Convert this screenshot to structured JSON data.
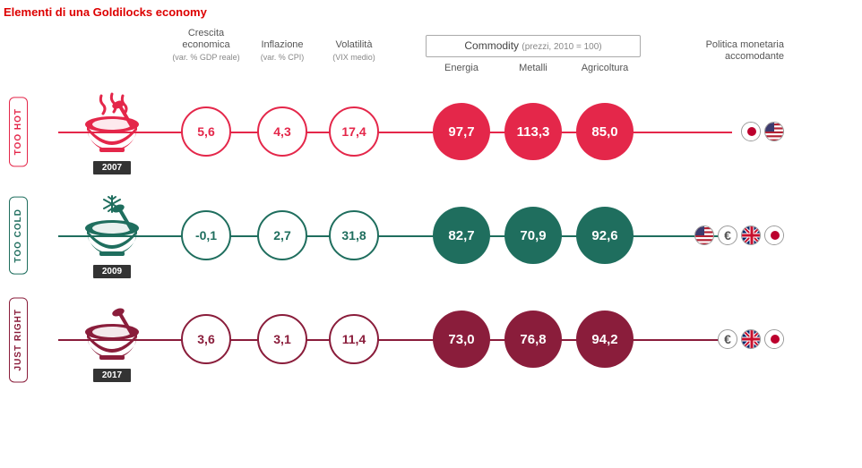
{
  "title": "Elementi di una Goldilocks economy",
  "columns": {
    "growth": {
      "label": "Crescita economica",
      "sub": "(var. % GDP reale)"
    },
    "inflation": {
      "label": "Inflazione",
      "sub": "(var. % CPI)"
    },
    "volatility": {
      "label": "Volatilità",
      "sub": "(VIX medio)"
    },
    "commodity_header": {
      "label": "Commodity",
      "sub": "(prezzi, 2010 = 100)"
    },
    "energy": "Energia",
    "metals": "Metalli",
    "agri": "Agricoltura",
    "policy": "Politica monetaria accomodante"
  },
  "rows": [
    {
      "key": "hot",
      "badge": "TOO HOT",
      "year": "2007",
      "color": "#e4274a",
      "growth": "5,6",
      "inflation": "4,3",
      "volatility": "17,4",
      "energy": "97,7",
      "metals": "113,3",
      "agri": "85,0",
      "flags": [
        "jp",
        "us"
      ]
    },
    {
      "key": "cold",
      "badge": "TOO COLD",
      "year": "2009",
      "color": "#1f6e5e",
      "growth": "-0,1",
      "inflation": "2,7",
      "volatility": "31,8",
      "energy": "82,7",
      "metals": "70,9",
      "agri": "92,6",
      "flags": [
        "us",
        "eu",
        "uk",
        "jp"
      ]
    },
    {
      "key": "right",
      "badge": "JUST RIGHT",
      "year": "2017",
      "color": "#8a1d3b",
      "growth": "3,6",
      "inflation": "3,1",
      "volatility": "11,4",
      "energy": "73,0",
      "metals": "76,8",
      "agri": "94,2",
      "flags": [
        "eu",
        "uk",
        "jp"
      ]
    }
  ],
  "bowl_decor": {
    "hot": "steam",
    "cold": "snow",
    "right": "none"
  }
}
